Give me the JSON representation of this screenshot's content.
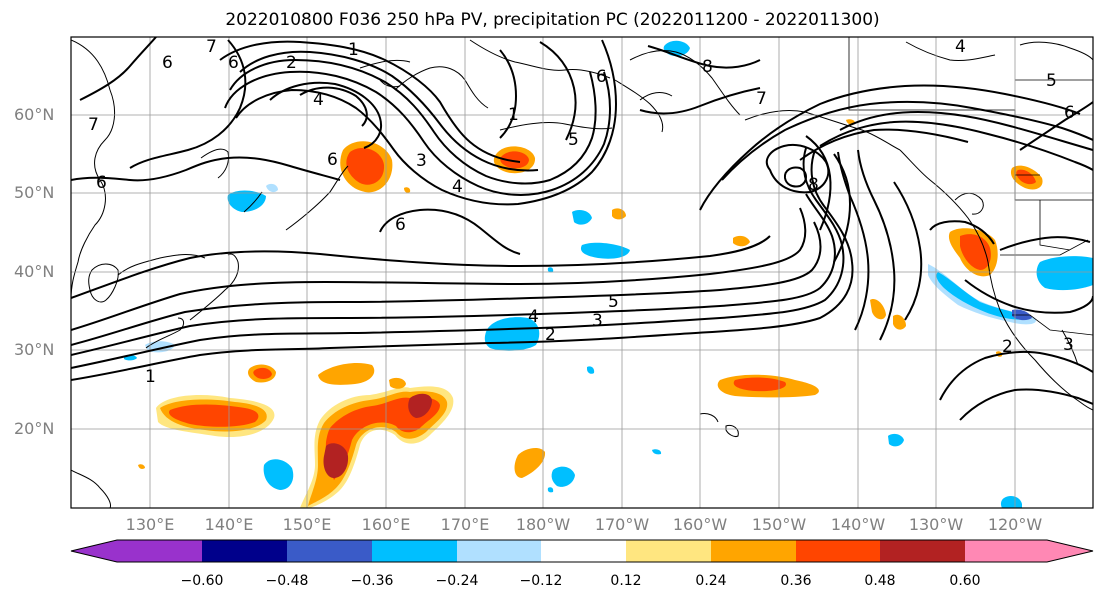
{
  "title": "2022010800 F036 250 hPa PV, precipitation PC (2022011200 - 2022011300)",
  "lat_labels": [
    "60°N",
    "50°N",
    "40°N",
    "30°N",
    "20°N"
  ],
  "lon_labels": [
    "130°E",
    "140°E",
    "150°E",
    "160°E",
    "170°E",
    "180°W",
    "170°W",
    "160°W",
    "150°W",
    "140°W",
    "130°W",
    "120°W"
  ],
  "colorbar": {
    "tick_labels": [
      "−0.60",
      "−0.48",
      "−0.36",
      "−0.24",
      "−0.12",
      "0.12",
      "0.24",
      "0.36",
      "0.48",
      "0.60"
    ],
    "colors": [
      "#9932cc",
      "#00008b",
      "#3a5bc8",
      "#00bfff",
      "#b0e0ff",
      "#ffffff",
      "#ffe680",
      "#ffa500",
      "#ff4500",
      "#b22222",
      "#ff88b4"
    ]
  },
  "pv_contour_labels": [
    "1",
    "2",
    "3",
    "4",
    "5",
    "6",
    "7",
    "8"
  ],
  "positive_color": "#ff4500",
  "negative_color": "#00bfff",
  "map_features": [
    "coastlines",
    "country-borders",
    "gridlines",
    "pv-contours",
    "precipitation-pc-shading"
  ]
}
